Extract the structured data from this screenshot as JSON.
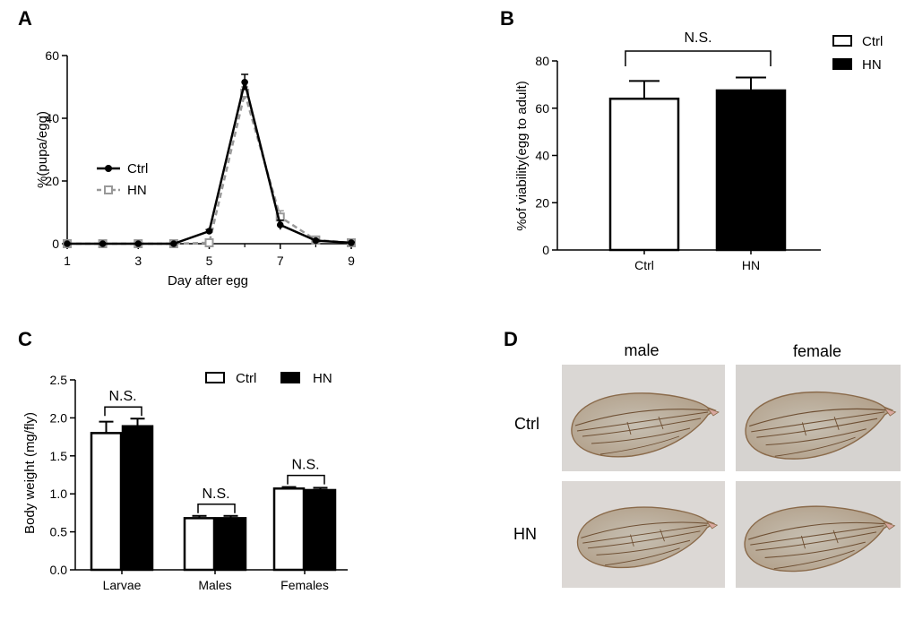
{
  "chart_data": [
    {
      "panel": "A",
      "type": "line",
      "xlabel": "Day after egg",
      "ylabel": "%(pupa/egg)",
      "xlim": [
        1,
        9
      ],
      "ylim": [
        0,
        60
      ],
      "xticks": [
        "1",
        "3",
        "5",
        "7",
        "9"
      ],
      "yticks": [
        "0",
        "20",
        "40",
        "60"
      ],
      "legend_position": "middle-left",
      "series": [
        {
          "name": "Ctrl",
          "style": "solid",
          "marker": "filled-circle",
          "color": "#000000",
          "x": [
            1,
            2,
            3,
            4,
            5,
            6,
            7,
            8,
            9
          ],
          "y": [
            0,
            0,
            0,
            0,
            4,
            51.5,
            6,
            1,
            0.3
          ],
          "err": [
            0,
            0,
            0,
            0,
            0.5,
            2.5,
            1.5,
            0.3,
            0.2
          ]
        },
        {
          "name": "HN",
          "style": "dashed",
          "marker": "open-square",
          "color": "#999999",
          "x": [
            1,
            2,
            3,
            4,
            5,
            6,
            7,
            8,
            9
          ],
          "y": [
            0,
            0,
            0,
            0,
            0.3,
            48,
            8.5,
            1.2,
            0.3
          ],
          "err": [
            0,
            0,
            0,
            0,
            0.2,
            2,
            2,
            0.3,
            0.2
          ]
        }
      ]
    },
    {
      "panel": "B",
      "type": "bar",
      "xlabel": "",
      "ylabel": "%of viability(egg to adult)",
      "ylim": [
        0,
        80
      ],
      "yticks": [
        "0",
        "20",
        "40",
        "60",
        "80"
      ],
      "categories": [
        "Ctrl",
        "HN"
      ],
      "values": [
        64,
        67.5
      ],
      "errors": [
        7.5,
        5.5
      ],
      "fills": [
        "#ffffff",
        "#000000"
      ],
      "significance": "N.S.",
      "legend": [
        "Ctrl",
        "HN"
      ],
      "legend_position": "top-right"
    },
    {
      "panel": "C",
      "type": "bar",
      "xlabel": "",
      "ylabel": "Body weight (mg/fly)",
      "ylim": [
        0,
        2.5
      ],
      "yticks": [
        "0.0",
        "0.5",
        "1.0",
        "1.5",
        "2.0",
        "2.5"
      ],
      "categories": [
        "Larvae",
        "Males",
        "Females"
      ],
      "series": [
        {
          "name": "Ctrl",
          "fill": "#ffffff",
          "values": [
            1.8,
            0.68,
            1.07
          ],
          "errors": [
            0.15,
            0.03,
            0.02
          ]
        },
        {
          "name": "HN",
          "fill": "#000000",
          "values": [
            1.89,
            0.68,
            1.05
          ],
          "errors": [
            0.1,
            0.03,
            0.03
          ]
        }
      ],
      "significance": [
        "N.S.",
        "N.S.",
        "N.S."
      ],
      "legend_position": "top-right"
    }
  ],
  "panel_labels": {
    "a": "A",
    "b": "B",
    "c": "C",
    "d": "D"
  },
  "wings": {
    "columns": [
      "male",
      "female"
    ],
    "rows": [
      "Ctrl",
      "HN"
    ]
  },
  "colors": {
    "ctrl": "#000000",
    "hn": "#999999",
    "wing_bg": "#d9d6d3",
    "wing_fill": "#bfb3a2",
    "wing_vein": "#7a5a3a"
  }
}
